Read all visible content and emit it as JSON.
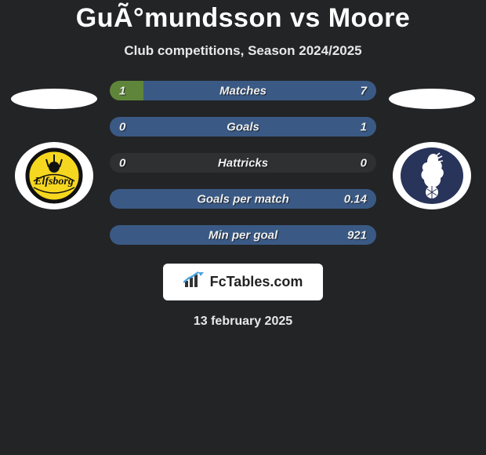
{
  "title": {
    "player1": "GuÃ°mundsson",
    "vs": " vs ",
    "player2": "Moore",
    "color": "#ffffff",
    "fontsize": 34
  },
  "subtitle": {
    "text": "Club competitions, Season 2024/2025",
    "color": "#e8e8e8",
    "fontsize": 17
  },
  "colors": {
    "background": "#232426",
    "bar_track": "#2f3032",
    "left_fill": "#5f853a",
    "right_fill": "#3a5a85",
    "white": "#ffffff",
    "text_light": "#f0f0f0"
  },
  "bars": {
    "height": 25,
    "radius": 14,
    "gap": 21,
    "label_fontsize": 15,
    "items": [
      {
        "label": "Matches",
        "left_val": "1",
        "right_val": "7",
        "left_pct": 12.5,
        "right_pct": 87.5
      },
      {
        "label": "Goals",
        "left_val": "0",
        "right_val": "1",
        "left_pct": 0,
        "right_pct": 100
      },
      {
        "label": "Hattricks",
        "left_val": "0",
        "right_val": "0",
        "left_pct": 0,
        "right_pct": 0
      },
      {
        "label": "Goals per match",
        "left_val": "",
        "right_val": "0.14",
        "left_pct": 0,
        "right_pct": 100
      },
      {
        "label": "Min per goal",
        "left_val": "",
        "right_val": "921",
        "left_pct": 0,
        "right_pct": 100
      }
    ]
  },
  "players": {
    "left_ellipse_color": "#ffffff",
    "right_ellipse_color": "#ffffff"
  },
  "clubs": {
    "left": {
      "bg": "#ffffff",
      "inner": "#f6d71f",
      "ring": "#111111",
      "text": "Elfsborg",
      "text_color": "#111111"
    },
    "right": {
      "bg": "#ffffff",
      "inner": "#28345a",
      "ball": "#ffffff"
    }
  },
  "branding": {
    "text": "FcTables.com",
    "bg": "#ffffff",
    "text_color": "#222222",
    "icon_color": "#333333",
    "accent": "#4aa3df"
  },
  "date": {
    "text": "13 february 2025",
    "color": "#e8e8e8",
    "fontsize": 16
  }
}
